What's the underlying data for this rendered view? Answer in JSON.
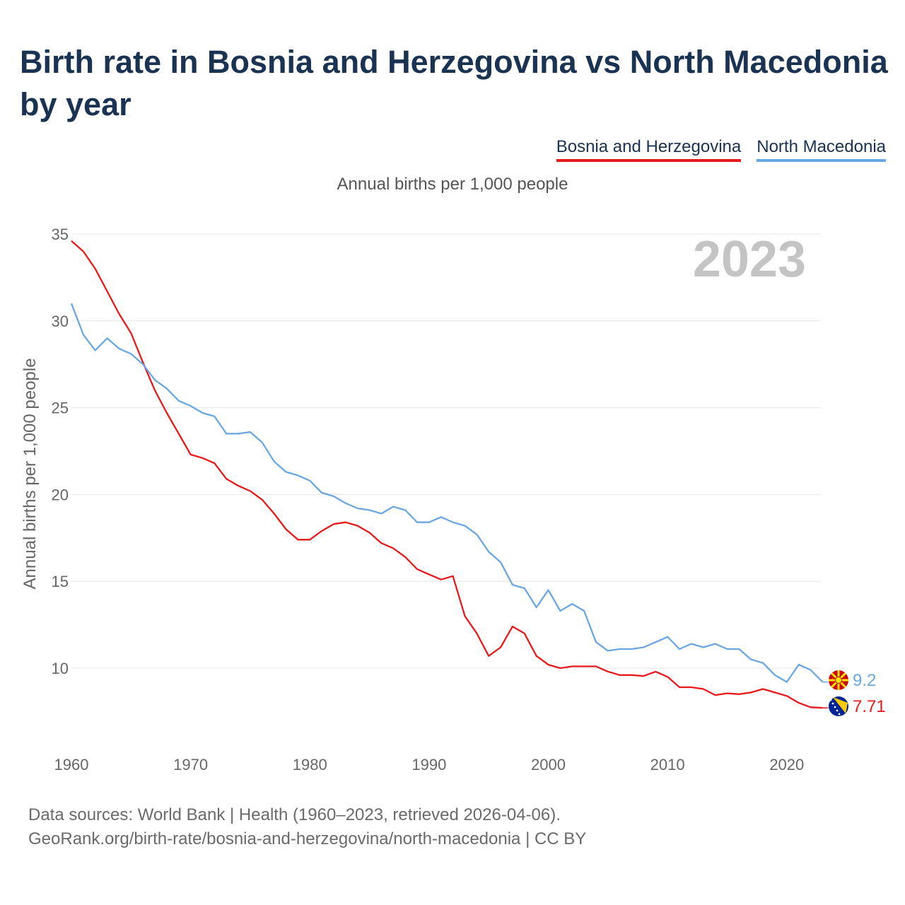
{
  "title": "Birth rate in Bosnia and Herzegovina vs North Macedonia by year",
  "subtitle": "Annual births per 1,000 people",
  "legend": [
    {
      "name": "Bosnia and Herzegovina",
      "color": "#e8191a"
    },
    {
      "name": "North Macedonia",
      "color": "#6aa7e2"
    }
  ],
  "year_label": "2023",
  "footer": {
    "line1": "Data sources: World Bank | Health (1960–2023, retrieved 2026-04-06).",
    "line2": "GeoRank.org/birth-rate/bosnia-and-herzegovina/north-macedonia | CC BY"
  },
  "chart_data": {
    "type": "line",
    "title": "Birth rate in Bosnia and Herzegovina vs North Macedonia by year",
    "xlabel": "",
    "ylabel": "Annual births per 1,000 people",
    "xlim": [
      1960,
      2023
    ],
    "ylim": [
      6.5,
      35
    ],
    "x_ticks": [
      1960,
      1970,
      1980,
      1990,
      2000,
      2010,
      2020
    ],
    "y_ticks": [
      10,
      15,
      20,
      25,
      30,
      35
    ],
    "x": [
      1960,
      1961,
      1962,
      1963,
      1964,
      1965,
      1966,
      1967,
      1968,
      1969,
      1970,
      1971,
      1972,
      1973,
      1974,
      1975,
      1976,
      1977,
      1978,
      1979,
      1980,
      1981,
      1982,
      1983,
      1984,
      1985,
      1986,
      1987,
      1988,
      1989,
      1990,
      1991,
      1992,
      1993,
      1994,
      1995,
      1996,
      1997,
      1998,
      1999,
      2000,
      2001,
      2002,
      2003,
      2004,
      2005,
      2006,
      2007,
      2008,
      2009,
      2010,
      2011,
      2012,
      2013,
      2014,
      2015,
      2016,
      2017,
      2018,
      2019,
      2020,
      2021,
      2022,
      2023
    ],
    "series": [
      {
        "name": "Bosnia and Herzegovina",
        "color": "#e8191a",
        "end_label": "7.71",
        "flag": "bosnia-flag",
        "values": [
          34.6,
          34.0,
          33.0,
          31.7,
          30.4,
          29.3,
          27.6,
          26.0,
          24.7,
          23.5,
          22.3,
          22.1,
          21.8,
          20.9,
          20.5,
          20.2,
          19.7,
          18.9,
          18.0,
          17.4,
          17.4,
          17.9,
          18.3,
          18.4,
          18.2,
          17.8,
          17.2,
          16.9,
          16.4,
          15.7,
          15.4,
          15.1,
          15.3,
          13.0,
          12.0,
          10.7,
          11.2,
          12.4,
          12.0,
          10.7,
          10.2,
          10.0,
          10.1,
          10.1,
          10.1,
          9.8,
          9.6,
          9.6,
          9.55,
          9.8,
          9.5,
          8.9,
          8.9,
          8.8,
          8.45,
          8.55,
          8.5,
          8.6,
          8.8,
          8.6,
          8.4,
          8.0,
          7.75,
          7.71
        ]
      },
      {
        "name": "North Macedonia",
        "color": "#6aa7e2",
        "end_label": "9.2",
        "flag": "north-macedonia-flag",
        "values": [
          31.0,
          29.2,
          28.3,
          29.0,
          28.4,
          28.1,
          27.5,
          26.6,
          26.1,
          25.4,
          25.1,
          24.7,
          24.5,
          23.5,
          23.5,
          23.6,
          23.0,
          21.9,
          21.3,
          21.1,
          20.8,
          20.1,
          19.9,
          19.5,
          19.2,
          19.1,
          18.9,
          19.3,
          19.1,
          18.4,
          18.4,
          18.7,
          18.4,
          18.2,
          17.7,
          16.7,
          16.1,
          14.8,
          14.6,
          13.5,
          14.5,
          13.3,
          13.7,
          13.3,
          11.5,
          11.0,
          11.1,
          11.1,
          11.2,
          11.5,
          11.8,
          11.1,
          11.4,
          11.2,
          11.4,
          11.1,
          11.1,
          10.5,
          10.3,
          9.6,
          9.2,
          10.2,
          9.9,
          9.2
        ]
      }
    ]
  }
}
